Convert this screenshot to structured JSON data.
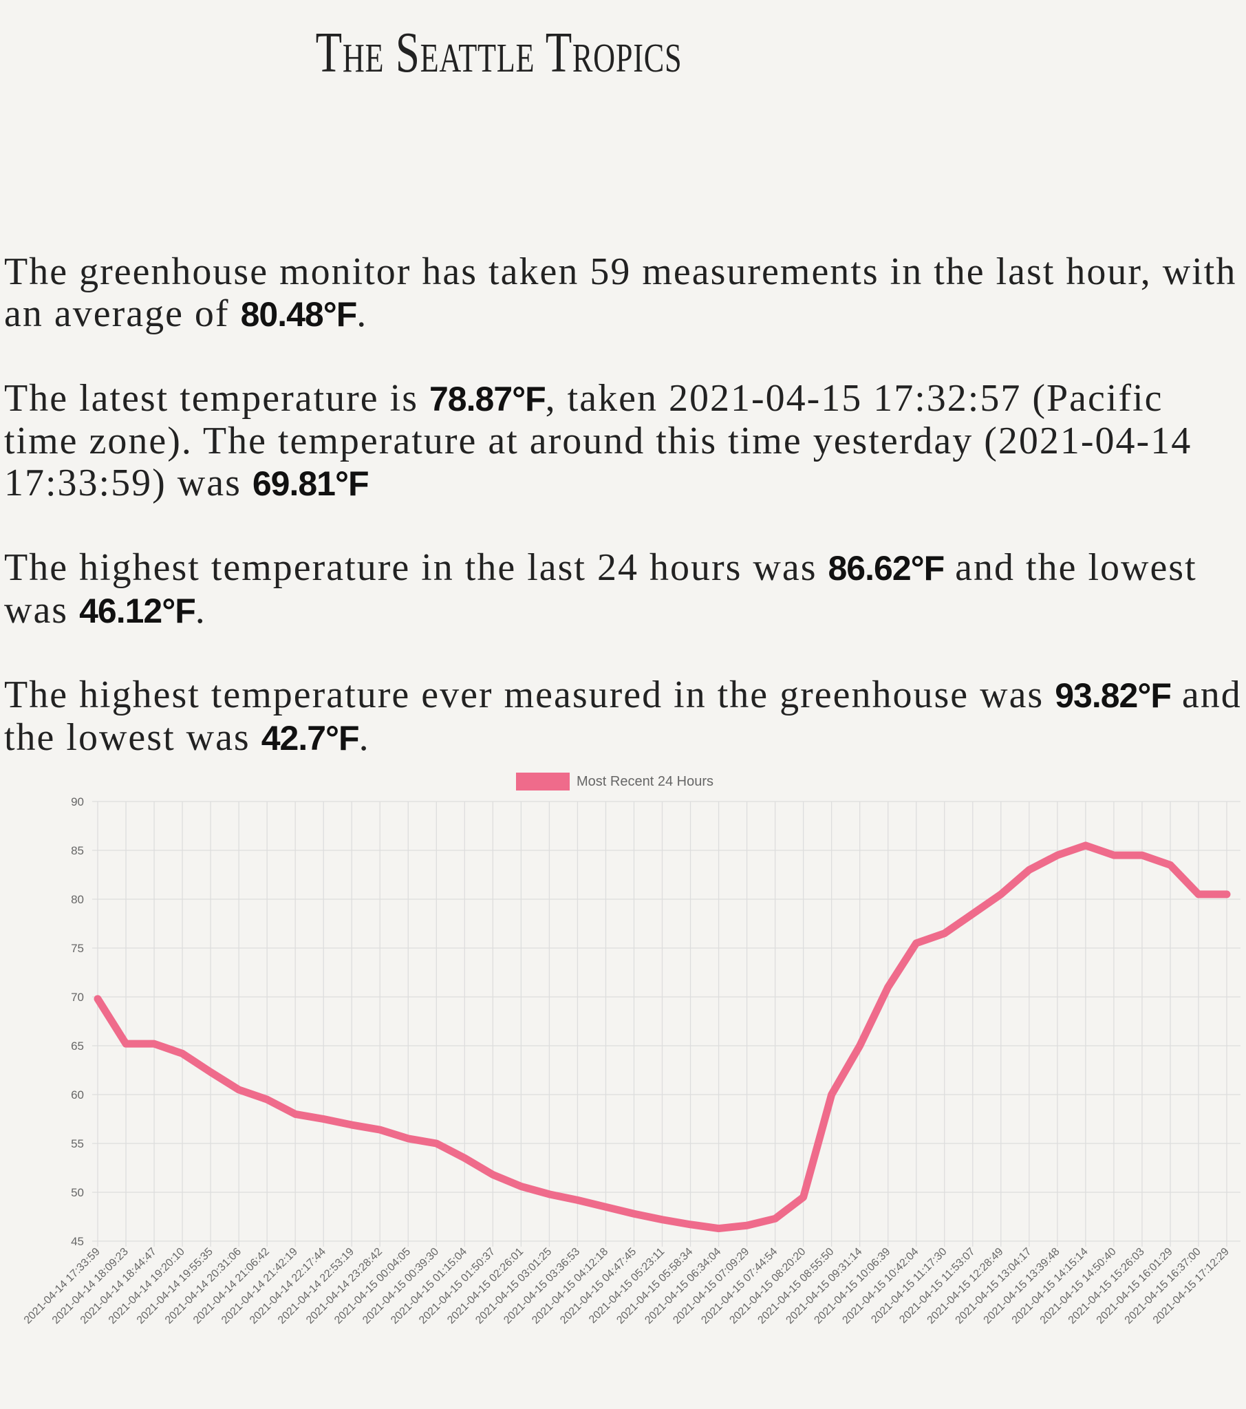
{
  "header": {
    "title": "The Seattle Tropics"
  },
  "paragraphs": [
    [
      "The greenhouse monitor has taken 59 measurements in the last hour, with an average of ",
      "80.48°F",
      "."
    ],
    [
      "The latest temperature is ",
      "78.87°F",
      ", taken 2021-04-15 17:32:57 (Pacific time zone). The temperature at around this time yesterday (2021-04-14 17:33:59) was ",
      "69.81°F"
    ],
    [
      "The highest temperature in the last 24 hours was ",
      "86.62°F",
      " and the lowest was ",
      "46.12°F",
      "."
    ],
    [
      "The highest temperature ever measured in the greenhouse was ",
      "93.82°F",
      " and the lowest was ",
      "42.7°F",
      "."
    ]
  ],
  "chart_data": {
    "type": "line",
    "categories": [
      "2021-04-14 17:33:59",
      "2021-04-14 18:09:23",
      "2021-04-14 18:44:47",
      "2021-04-14 19:20:10",
      "2021-04-14 19:55:35",
      "2021-04-14 20:31:06",
      "2021-04-14 21:06:42",
      "2021-04-14 21:42:19",
      "2021-04-14 22:17:44",
      "2021-04-14 22:53:19",
      "2021-04-14 23:28:42",
      "2021-04-15 00:04:05",
      "2021-04-15 00:39:30",
      "2021-04-15 01:15:04",
      "2021-04-15 01:50:37",
      "2021-04-15 02:26:01",
      "2021-04-15 03:01:25",
      "2021-04-15 03:36:53",
      "2021-04-15 04:12:18",
      "2021-04-15 04:47:45",
      "2021-04-15 05:23:11",
      "2021-04-15 05:58:34",
      "2021-04-15 06:34:04",
      "2021-04-15 07:09:29",
      "2021-04-15 07:44:54",
      "2021-04-15 08:20:20",
      "2021-04-15 08:55:50",
      "2021-04-15 09:31:14",
      "2021-04-15 10:06:39",
      "2021-04-15 10:42:04",
      "2021-04-15 11:17:30",
      "2021-04-15 11:53:07",
      "2021-04-15 12:28:49",
      "2021-04-15 13:04:17",
      "2021-04-15 13:39:48",
      "2021-04-15 14:15:14",
      "2021-04-15 14:50:40",
      "2021-04-15 15:26:03",
      "2021-04-15 16:01:29",
      "2021-04-15 16:37:00",
      "2021-04-15 17:12:29"
    ],
    "series": [
      {
        "name": "Most Recent 24 Hours",
        "color": "#ef6b8b",
        "values": [
          69.8,
          65.2,
          65.2,
          64.2,
          62.3,
          60.5,
          59.5,
          58,
          57.5,
          56.9,
          56.4,
          55.5,
          55,
          53.5,
          51.8,
          50.6,
          49.8,
          49.2,
          48.5,
          47.8,
          47.2,
          46.7,
          46.3,
          46.6,
          47.3,
          49.5,
          60,
          65,
          71,
          75.5,
          76.5,
          78.5,
          80.5,
          83,
          84.5,
          85.5,
          84.5,
          84.5,
          83.5,
          80.5,
          80.5
        ]
      }
    ],
    "ylim": [
      45,
      90
    ],
    "yticks": [
      45,
      50,
      55,
      60,
      65,
      70,
      75,
      80,
      85,
      90
    ],
    "grid": true
  }
}
